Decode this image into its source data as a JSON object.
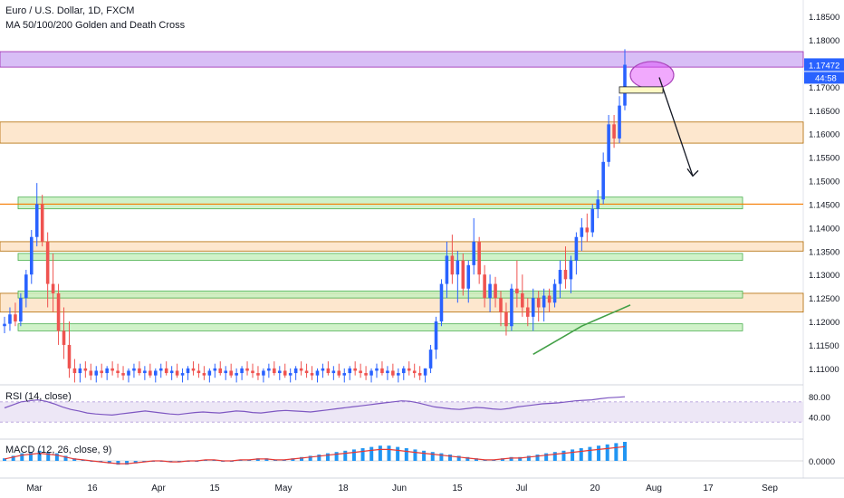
{
  "header": {
    "symbol_line": "Euro / U.S. Dollar, 1D, FXCM",
    "indicator_line": "MA 50/100/200 Golden and Death Cross"
  },
  "price_axis": {
    "ticks": [
      "1.18500",
      "1.18000",
      "1.17500",
      "1.17000",
      "1.16500",
      "1.16000",
      "1.15500",
      "1.15000",
      "1.14500",
      "1.14000",
      "1.13500",
      "1.13000",
      "1.12500",
      "1.12000",
      "1.11500",
      "1.11000"
    ],
    "last_price_label": "1.17472",
    "countdown_label": "44:58",
    "last_price_color": "#2962ff"
  },
  "time_axis": {
    "labels": [
      "Mar",
      "16",
      "Apr",
      "15",
      "May",
      "18",
      "Jun",
      "15",
      "Jul",
      "20",
      "Aug",
      "17",
      "Sep"
    ]
  },
  "rsi_panel": {
    "label": "RSI (14, close)",
    "ticks": [
      "80.00",
      "40.00"
    ],
    "line_color": "#7e57c2",
    "band_color": "#ede7f6"
  },
  "macd_panel": {
    "label": "MACD (12, 26, close, 9)",
    "ticks": [
      "0.0000"
    ],
    "hist_color": "#2196f3",
    "signal_color": "#e53935"
  },
  "colors": {
    "up_candle": "#2962ff",
    "down_candle": "#ef5350",
    "purple_zone": "#d1b3f5",
    "orange_zone": "#fde3c6",
    "green_zone": "#c8f0c0",
    "orange_line": "#f57c00"
  },
  "chart_data": {
    "type": "candlestick",
    "series_name": "EURUSD daily",
    "price_range": [
      1.1065,
      1.1885
    ],
    "candles": [
      {
        "o": 1.119,
        "h": 1.121,
        "l": 1.1175,
        "c": 1.1195
      },
      {
        "o": 1.1195,
        "h": 1.123,
        "l": 1.118,
        "c": 1.1215
      },
      {
        "o": 1.1215,
        "h": 1.124,
        "l": 1.119,
        "c": 1.12
      },
      {
        "o": 1.12,
        "h": 1.126,
        "l": 1.119,
        "c": 1.125
      },
      {
        "o": 1.125,
        "h": 1.131,
        "l": 1.123,
        "c": 1.13
      },
      {
        "o": 1.13,
        "h": 1.1395,
        "l": 1.128,
        "c": 1.138
      },
      {
        "o": 1.138,
        "h": 1.1495,
        "l": 1.136,
        "c": 1.145
      },
      {
        "o": 1.145,
        "h": 1.147,
        "l": 1.136,
        "c": 1.137
      },
      {
        "o": 1.137,
        "h": 1.139,
        "l": 1.123,
        "c": 1.128
      },
      {
        "o": 1.128,
        "h": 1.1345,
        "l": 1.122,
        "c": 1.126
      },
      {
        "o": 1.126,
        "h": 1.128,
        "l": 1.115,
        "c": 1.118
      },
      {
        "o": 1.118,
        "h": 1.123,
        "l": 1.112,
        "c": 1.115
      },
      {
        "o": 1.115,
        "h": 1.12,
        "l": 1.108,
        "c": 1.11
      },
      {
        "o": 1.11,
        "h": 1.112,
        "l": 1.107,
        "c": 1.109
      },
      {
        "o": 1.109,
        "h": 1.111,
        "l": 1.107,
        "c": 1.11
      },
      {
        "o": 1.11,
        "h": 1.1115,
        "l": 1.108,
        "c": 1.1095
      },
      {
        "o": 1.1095,
        "h": 1.111,
        "l": 1.1075,
        "c": 1.1085
      },
      {
        "o": 1.1085,
        "h": 1.1105,
        "l": 1.107,
        "c": 1.1095
      },
      {
        "o": 1.1095,
        "h": 1.111,
        "l": 1.108,
        "c": 1.109
      },
      {
        "o": 1.109,
        "h": 1.1105,
        "l": 1.1075,
        "c": 1.11
      },
      {
        "o": 1.11,
        "h": 1.1115,
        "l": 1.1085,
        "c": 1.1095
      },
      {
        "o": 1.1095,
        "h": 1.111,
        "l": 1.108,
        "c": 1.109
      },
      {
        "o": 1.109,
        "h": 1.1105,
        "l": 1.1075,
        "c": 1.1085
      },
      {
        "o": 1.1085,
        "h": 1.11,
        "l": 1.107,
        "c": 1.1095
      },
      {
        "o": 1.1095,
        "h": 1.111,
        "l": 1.108,
        "c": 1.11
      },
      {
        "o": 1.11,
        "h": 1.1115,
        "l": 1.1085,
        "c": 1.109
      },
      {
        "o": 1.109,
        "h": 1.1105,
        "l": 1.1075,
        "c": 1.1095
      },
      {
        "o": 1.1095,
        "h": 1.111,
        "l": 1.108,
        "c": 1.1085
      },
      {
        "o": 1.1085,
        "h": 1.11,
        "l": 1.107,
        "c": 1.1095
      },
      {
        "o": 1.1095,
        "h": 1.111,
        "l": 1.108,
        "c": 1.11
      },
      {
        "o": 1.11,
        "h": 1.1115,
        "l": 1.1085,
        "c": 1.109
      },
      {
        "o": 1.109,
        "h": 1.1105,
        "l": 1.1075,
        "c": 1.1095
      },
      {
        "o": 1.1095,
        "h": 1.111,
        "l": 1.108,
        "c": 1.1085
      },
      {
        "o": 1.1085,
        "h": 1.11,
        "l": 1.107,
        "c": 1.109
      },
      {
        "o": 1.109,
        "h": 1.1105,
        "l": 1.1075,
        "c": 1.11
      },
      {
        "o": 1.11,
        "h": 1.1115,
        "l": 1.1085,
        "c": 1.1095
      },
      {
        "o": 1.1095,
        "h": 1.111,
        "l": 1.108,
        "c": 1.109
      },
      {
        "o": 1.109,
        "h": 1.1105,
        "l": 1.1075,
        "c": 1.1085
      },
      {
        "o": 1.1085,
        "h": 1.11,
        "l": 1.107,
        "c": 1.1095
      },
      {
        "o": 1.1095,
        "h": 1.111,
        "l": 1.108,
        "c": 1.11
      },
      {
        "o": 1.11,
        "h": 1.1115,
        "l": 1.1085,
        "c": 1.109
      },
      {
        "o": 1.109,
        "h": 1.1105,
        "l": 1.1075,
        "c": 1.1095
      },
      {
        "o": 1.1095,
        "h": 1.111,
        "l": 1.108,
        "c": 1.1085
      },
      {
        "o": 1.1085,
        "h": 1.11,
        "l": 1.107,
        "c": 1.109
      },
      {
        "o": 1.109,
        "h": 1.1105,
        "l": 1.1075,
        "c": 1.11
      },
      {
        "o": 1.11,
        "h": 1.1115,
        "l": 1.1085,
        "c": 1.1095
      },
      {
        "o": 1.1095,
        "h": 1.111,
        "l": 1.108,
        "c": 1.109
      },
      {
        "o": 1.109,
        "h": 1.1105,
        "l": 1.1075,
        "c": 1.1085
      },
      {
        "o": 1.1085,
        "h": 1.11,
        "l": 1.107,
        "c": 1.1095
      },
      {
        "o": 1.1095,
        "h": 1.111,
        "l": 1.108,
        "c": 1.11
      },
      {
        "o": 1.11,
        "h": 1.1115,
        "l": 1.1085,
        "c": 1.109
      },
      {
        "o": 1.109,
        "h": 1.1105,
        "l": 1.1075,
        "c": 1.1095
      },
      {
        "o": 1.1095,
        "h": 1.111,
        "l": 1.108,
        "c": 1.1085
      },
      {
        "o": 1.1085,
        "h": 1.11,
        "l": 1.107,
        "c": 1.109
      },
      {
        "o": 1.109,
        "h": 1.1105,
        "l": 1.1075,
        "c": 1.11
      },
      {
        "o": 1.11,
        "h": 1.1115,
        "l": 1.1085,
        "c": 1.1095
      },
      {
        "o": 1.1095,
        "h": 1.111,
        "l": 1.108,
        "c": 1.109
      },
      {
        "o": 1.109,
        "h": 1.1105,
        "l": 1.1075,
        "c": 1.1085
      },
      {
        "o": 1.1085,
        "h": 1.11,
        "l": 1.107,
        "c": 1.1095
      },
      {
        "o": 1.1095,
        "h": 1.111,
        "l": 1.108,
        "c": 1.11
      },
      {
        "o": 1.11,
        "h": 1.1115,
        "l": 1.1085,
        "c": 1.109
      },
      {
        "o": 1.109,
        "h": 1.1105,
        "l": 1.1075,
        "c": 1.1095
      },
      {
        "o": 1.1095,
        "h": 1.111,
        "l": 1.108,
        "c": 1.1085
      },
      {
        "o": 1.1085,
        "h": 1.11,
        "l": 1.107,
        "c": 1.109
      },
      {
        "o": 1.109,
        "h": 1.1105,
        "l": 1.1075,
        "c": 1.11
      },
      {
        "o": 1.11,
        "h": 1.1115,
        "l": 1.1085,
        "c": 1.1095
      },
      {
        "o": 1.1095,
        "h": 1.111,
        "l": 1.108,
        "c": 1.109
      },
      {
        "o": 1.109,
        "h": 1.1105,
        "l": 1.1075,
        "c": 1.1085
      },
      {
        "o": 1.1085,
        "h": 1.11,
        "l": 1.107,
        "c": 1.1095
      },
      {
        "o": 1.1095,
        "h": 1.111,
        "l": 1.108,
        "c": 1.11
      },
      {
        "o": 1.11,
        "h": 1.1115,
        "l": 1.1085,
        "c": 1.109
      },
      {
        "o": 1.109,
        "h": 1.1105,
        "l": 1.1075,
        "c": 1.1095
      },
      {
        "o": 1.1095,
        "h": 1.111,
        "l": 1.108,
        "c": 1.1085
      },
      {
        "o": 1.1085,
        "h": 1.11,
        "l": 1.107,
        "c": 1.109
      },
      {
        "o": 1.109,
        "h": 1.1105,
        "l": 1.1075,
        "c": 1.11
      },
      {
        "o": 1.11,
        "h": 1.1115,
        "l": 1.1085,
        "c": 1.1095
      },
      {
        "o": 1.1095,
        "h": 1.111,
        "l": 1.108,
        "c": 1.109
      },
      {
        "o": 1.109,
        "h": 1.1105,
        "l": 1.1075,
        "c": 1.1085
      },
      {
        "o": 1.1085,
        "h": 1.11,
        "l": 1.107,
        "c": 1.11
      },
      {
        "o": 1.11,
        "h": 1.115,
        "l": 1.109,
        "c": 1.114
      },
      {
        "o": 1.114,
        "h": 1.121,
        "l": 1.112,
        "c": 1.12
      },
      {
        "o": 1.12,
        "h": 1.129,
        "l": 1.119,
        "c": 1.128
      },
      {
        "o": 1.128,
        "h": 1.137,
        "l": 1.125,
        "c": 1.134
      },
      {
        "o": 1.134,
        "h": 1.1385,
        "l": 1.128,
        "c": 1.13
      },
      {
        "o": 1.13,
        "h": 1.135,
        "l": 1.124,
        "c": 1.133
      },
      {
        "o": 1.133,
        "h": 1.1345,
        "l": 1.1255,
        "c": 1.127
      },
      {
        "o": 1.127,
        "h": 1.133,
        "l": 1.124,
        "c": 1.132
      },
      {
        "o": 1.132,
        "h": 1.142,
        "l": 1.13,
        "c": 1.137
      },
      {
        "o": 1.137,
        "h": 1.138,
        "l": 1.128,
        "c": 1.13
      },
      {
        "o": 1.13,
        "h": 1.132,
        "l": 1.123,
        "c": 1.125
      },
      {
        "o": 1.125,
        "h": 1.13,
        "l": 1.122,
        "c": 1.128
      },
      {
        "o": 1.128,
        "h": 1.1295,
        "l": 1.123,
        "c": 1.125
      },
      {
        "o": 1.125,
        "h": 1.1265,
        "l": 1.119,
        "c": 1.122
      },
      {
        "o": 1.122,
        "h": 1.124,
        "l": 1.117,
        "c": 1.119
      },
      {
        "o": 1.119,
        "h": 1.128,
        "l": 1.118,
        "c": 1.127
      },
      {
        "o": 1.127,
        "h": 1.133,
        "l": 1.123,
        "c": 1.126
      },
      {
        "o": 1.126,
        "h": 1.13,
        "l": 1.121,
        "c": 1.123
      },
      {
        "o": 1.123,
        "h": 1.125,
        "l": 1.119,
        "c": 1.121
      },
      {
        "o": 1.121,
        "h": 1.127,
        "l": 1.118,
        "c": 1.125
      },
      {
        "o": 1.125,
        "h": 1.1265,
        "l": 1.12,
        "c": 1.123
      },
      {
        "o": 1.123,
        "h": 1.127,
        "l": 1.12,
        "c": 1.1255
      },
      {
        "o": 1.1255,
        "h": 1.127,
        "l": 1.122,
        "c": 1.124
      },
      {
        "o": 1.124,
        "h": 1.129,
        "l": 1.123,
        "c": 1.128
      },
      {
        "o": 1.128,
        "h": 1.133,
        "l": 1.125,
        "c": 1.131
      },
      {
        "o": 1.131,
        "h": 1.136,
        "l": 1.127,
        "c": 1.129
      },
      {
        "o": 1.129,
        "h": 1.134,
        "l": 1.126,
        "c": 1.133
      },
      {
        "o": 1.133,
        "h": 1.139,
        "l": 1.13,
        "c": 1.138
      },
      {
        "o": 1.138,
        "h": 1.142,
        "l": 1.135,
        "c": 1.14
      },
      {
        "o": 1.14,
        "h": 1.143,
        "l": 1.137,
        "c": 1.139
      },
      {
        "o": 1.139,
        "h": 1.145,
        "l": 1.138,
        "c": 1.144
      },
      {
        "o": 1.144,
        "h": 1.148,
        "l": 1.142,
        "c": 1.146
      },
      {
        "o": 1.146,
        "h": 1.156,
        "l": 1.145,
        "c": 1.154
      },
      {
        "o": 1.154,
        "h": 1.164,
        "l": 1.153,
        "c": 1.162
      },
      {
        "o": 1.162,
        "h": 1.164,
        "l": 1.157,
        "c": 1.159
      },
      {
        "o": 1.159,
        "h": 1.168,
        "l": 1.158,
        "c": 1.166
      },
      {
        "o": 1.166,
        "h": 1.178,
        "l": 1.165,
        "c": 1.1747
      }
    ],
    "moving_average": {
      "name": "",
      "x_range": [
        98,
        116
      ],
      "values": [
        1.113,
        1.115,
        1.117,
        1.119,
        1.1205,
        1.122,
        1.1235
      ]
    },
    "zones": [
      {
        "kind": "purple",
        "from": 1.1742,
        "to": 1.1775
      },
      {
        "kind": "orange",
        "from": 1.158,
        "to": 1.1625
      },
      {
        "kind": "orange",
        "from": 1.122,
        "to": 1.126
      },
      {
        "kind": "orange",
        "from": 1.135,
        "to": 1.137
      },
      {
        "kind": "green",
        "from": 1.144,
        "to": 1.1465
      },
      {
        "kind": "green",
        "from": 1.133,
        "to": 1.1345
      },
      {
        "kind": "green",
        "from": 1.125,
        "to": 1.1265
      },
      {
        "kind": "green",
        "from": 1.118,
        "to": 1.1195
      }
    ],
    "horizontal_lines": [
      1.145
    ],
    "projection_arrow": {
      "from": 1.172,
      "to": 1.151
    },
    "rsi_values": [
      58,
      64,
      70,
      72,
      74,
      71,
      66,
      60,
      55,
      52,
      48,
      46,
      45,
      44,
      46,
      48,
      50,
      52,
      50,
      48,
      46,
      45,
      47,
      49,
      50,
      49,
      48,
      50,
      52,
      51,
      49,
      48,
      50,
      52,
      53,
      52,
      51,
      50,
      52,
      54,
      56,
      58,
      60,
      62,
      64,
      66,
      68,
      70,
      72,
      71,
      68,
      64,
      60,
      58,
      56,
      55,
      57,
      59,
      58,
      56,
      55,
      57,
      60,
      62,
      64,
      66,
      67,
      68,
      70,
      72,
      73,
      74,
      76,
      78,
      79,
      80
    ],
    "macd_hist": [
      0.002,
      0.004,
      0.006,
      0.007,
      0.008,
      0.007,
      0.006,
      0.004,
      0.002,
      0.001,
      0.0,
      -0.001,
      -0.002,
      -0.003,
      -0.003,
      -0.002,
      -0.001,
      0.0,
      0.0,
      -0.001,
      -0.001,
      0.0,
      0.0,
      0.001,
      0.001,
      0.0,
      0.0,
      0.001,
      0.001,
      0.002,
      0.002,
      0.001,
      0.001,
      0.002,
      0.003,
      0.004,
      0.005,
      0.006,
      0.007,
      0.008,
      0.009,
      0.01,
      0.011,
      0.012,
      0.012,
      0.011,
      0.01,
      0.009,
      0.008,
      0.007,
      0.006,
      0.005,
      0.004,
      0.003,
      0.002,
      0.001,
      0.001,
      0.002,
      0.003,
      0.003,
      0.004,
      0.005,
      0.006,
      0.007,
      0.008,
      0.009,
      0.01,
      0.011,
      0.012,
      0.013,
      0.014,
      0.015
    ]
  }
}
